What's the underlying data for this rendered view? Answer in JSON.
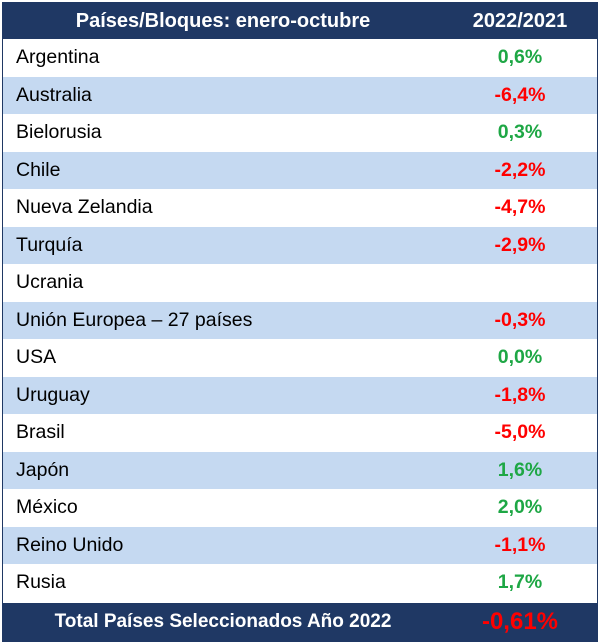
{
  "colors": {
    "header_bg": "#1f3864",
    "band_bg": "#c5d9f1",
    "positive": "#1ea745",
    "negative": "#ff0000"
  },
  "chart_data": {
    "type": "table",
    "columns": [
      "Países/Bloques: enero-octubre",
      "2022/2021"
    ],
    "rows": [
      {
        "country": "Argentina",
        "value": "0,6%",
        "sign": "pos"
      },
      {
        "country": "Australia",
        "value": "-6,4%",
        "sign": "neg"
      },
      {
        "country": "Bielorusia",
        "value": "0,3%",
        "sign": "pos"
      },
      {
        "country": "Chile",
        "value": "-2,2%",
        "sign": "neg"
      },
      {
        "country": "Nueva Zelandia",
        "value": "-4,7%",
        "sign": "neg"
      },
      {
        "country": "Turquía",
        "value": "-2,9%",
        "sign": "neg"
      },
      {
        "country": "Ucrania",
        "value": "",
        "sign": "none"
      },
      {
        "country": "Unión Europea – 27 países",
        "value": "-0,3%",
        "sign": "neg"
      },
      {
        "country": "USA",
        "value": "0,0%",
        "sign": "pos"
      },
      {
        "country": "Uruguay",
        "value": "-1,8%",
        "sign": "neg"
      },
      {
        "country": "Brasil",
        "value": "-5,0%",
        "sign": "neg"
      },
      {
        "country": "Japón",
        "value": "1,6%",
        "sign": "pos"
      },
      {
        "country": "México",
        "value": "2,0%",
        "sign": "pos"
      },
      {
        "country": "Reino Unido",
        "value": "-1,1%",
        "sign": "neg"
      },
      {
        "country": "Rusia",
        "value": "1,7%",
        "sign": "pos"
      }
    ],
    "total": {
      "label": "Total Países Seleccionados Año 2022",
      "value": "-0,61%"
    }
  }
}
